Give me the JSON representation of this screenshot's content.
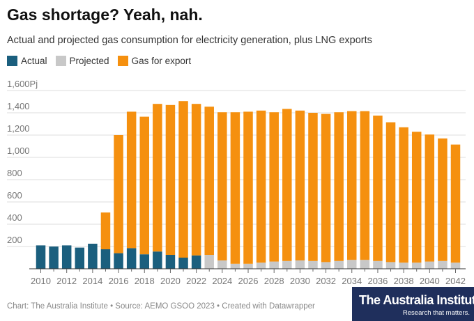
{
  "header": {
    "title": "Gas shortage? Yeah, nah.",
    "subtitle": "Actual and projected gas consumption for electricity generation, plus LNG exports"
  },
  "legend": {
    "items": [
      {
        "label": "Actual",
        "color": "#1b5f7e"
      },
      {
        "label": "Projected",
        "color": "#c8c8c8"
      },
      {
        "label": "Gas for export",
        "color": "#f5900f"
      }
    ]
  },
  "footer": {
    "text": "Chart: The Australia Institute • Source: AEMO GSOO 2023 • Created with Datawrapper"
  },
  "logo": {
    "name": "The Australia Institute",
    "tagline": "Research that matters."
  },
  "chart_data": {
    "type": "bar",
    "stacked": true,
    "y_unit": "Pj",
    "ylim": [
      0,
      1600
    ],
    "y_ticks": [
      200,
      400,
      600,
      800,
      1000,
      1200,
      1400,
      1600
    ],
    "y_tick_labels": [
      "200",
      "400",
      "600",
      "800",
      "1,000",
      "1,200",
      "1,400",
      "1,600Pj"
    ],
    "x_tick_labels": [
      "2010",
      "2012",
      "2014",
      "2016",
      "2018",
      "2020",
      "2022",
      "2024",
      "2026",
      "2028",
      "2030",
      "2032",
      "2034",
      "2036",
      "2038",
      "2040",
      "2042"
    ],
    "grid": true,
    "legend_position": "top-left",
    "categories": [
      "2010",
      "2011",
      "2012",
      "2013",
      "2014",
      "2015",
      "2016",
      "2017",
      "2018",
      "2019",
      "2020",
      "2021",
      "2022",
      "2023",
      "2024",
      "2025",
      "2026",
      "2027",
      "2028",
      "2029",
      "2030",
      "2031",
      "2032",
      "2033",
      "2034",
      "2035",
      "2036",
      "2037",
      "2038",
      "2039",
      "2040",
      "2041",
      "2042"
    ],
    "series": [
      {
        "name": "Actual",
        "color": "#1b5f7e",
        "values": [
          210,
          200,
          210,
          190,
          225,
          175,
          140,
          185,
          130,
          155,
          125,
          100,
          120,
          0,
          0,
          0,
          0,
          0,
          0,
          0,
          0,
          0,
          0,
          0,
          0,
          0,
          0,
          0,
          0,
          0,
          0,
          0,
          0
        ]
      },
      {
        "name": "Projected",
        "color": "#c8c8c8",
        "values": [
          0,
          0,
          0,
          0,
          0,
          0,
          0,
          0,
          0,
          0,
          0,
          0,
          0,
          125,
          75,
          45,
          45,
          55,
          65,
          70,
          75,
          70,
          60,
          70,
          80,
          80,
          70,
          60,
          55,
          55,
          65,
          70,
          55
        ]
      },
      {
        "name": "Gas for export",
        "color": "#f5900f",
        "values": [
          0,
          0,
          0,
          0,
          0,
          330,
          1060,
          1225,
          1235,
          1325,
          1345,
          1405,
          1360,
          1330,
          1330,
          1360,
          1365,
          1365,
          1340,
          1365,
          1345,
          1330,
          1330,
          1335,
          1335,
          1335,
          1305,
          1255,
          1215,
          1175,
          1140,
          1100,
          1060
        ]
      }
    ]
  }
}
